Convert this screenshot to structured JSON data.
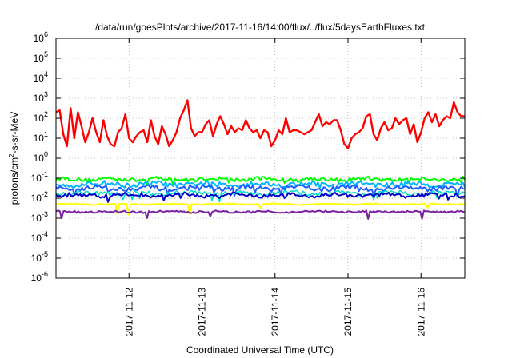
{
  "chart_data": {
    "type": "line",
    "title": "/data/run/goesPlots/archive/2017-11-16/14:00/flux/../flux/5daysEarthFluxes.txt",
    "xlabel": "Coordinated Universal Time (UTC)",
    "ylabel": "protons/cm2-s-sr-MeV",
    "ylabel_parts": {
      "pre": "protons/cm",
      "sup": "2",
      "post": "-s-sr-MeV"
    },
    "yscale": "log",
    "ylim_exp": [
      -6,
      6
    ],
    "y_ticks": [
      {
        "base": "10",
        "exp": "-6"
      },
      {
        "base": "10",
        "exp": "-5"
      },
      {
        "base": "10",
        "exp": "-4"
      },
      {
        "base": "10",
        "exp": "-3"
      },
      {
        "base": "10",
        "exp": "-2"
      },
      {
        "base": "10",
        "exp": "-1"
      },
      {
        "base": "10",
        "exp": "0"
      },
      {
        "base": "10",
        "exp": "1"
      },
      {
        "base": "10",
        "exp": "2"
      },
      {
        "base": "10",
        "exp": "3"
      },
      {
        "base": "10",
        "exp": "4"
      },
      {
        "base": "10",
        "exp": "5"
      },
      {
        "base": "10",
        "exp": "6"
      }
    ],
    "xlim_days": [
      0,
      5.6
    ],
    "x_ticks": [
      {
        "label": "2017-11-12",
        "day": 1
      },
      {
        "label": "2017-11-13",
        "day": 2
      },
      {
        "label": "2017-11-14",
        "day": 3
      },
      {
        "label": "2017-11-15",
        "day": 4
      },
      {
        "label": "2017-11-16",
        "day": 5
      }
    ],
    "grid": true,
    "series": [
      {
        "color": "#ff0000",
        "width": 2.4,
        "base": 1.4,
        "amp": 0.9,
        "spike": 0.6,
        "points": [
          [
            0.0,
            2.3
          ],
          [
            0.05,
            2.4
          ],
          [
            0.1,
            1.2
          ],
          [
            0.15,
            0.6
          ],
          [
            0.2,
            2.5
          ],
          [
            0.25,
            1.0
          ],
          [
            0.3,
            2.3
          ],
          [
            0.35,
            1.6
          ],
          [
            0.4,
            0.8
          ],
          [
            0.45,
            1.3
          ],
          [
            0.5,
            2.0
          ],
          [
            0.55,
            1.3
          ],
          [
            0.6,
            0.8
          ],
          [
            0.65,
            1.9
          ],
          [
            0.7,
            1.1
          ],
          [
            0.75,
            0.7
          ],
          [
            0.8,
            0.6
          ],
          [
            0.85,
            1.3
          ],
          [
            0.9,
            1.5
          ],
          [
            0.95,
            2.2
          ],
          [
            1.0,
            1.0
          ],
          [
            1.05,
            0.8
          ],
          [
            1.1,
            1.1
          ],
          [
            1.15,
            1.3
          ],
          [
            1.2,
            1.4
          ],
          [
            1.25,
            0.8
          ],
          [
            1.3,
            1.9
          ],
          [
            1.35,
            1.1
          ],
          [
            1.4,
            0.7
          ],
          [
            1.45,
            1.6
          ],
          [
            1.5,
            1.2
          ],
          [
            1.55,
            0.6
          ],
          [
            1.6,
            0.9
          ],
          [
            1.65,
            1.3
          ],
          [
            1.7,
            2.0
          ],
          [
            1.75,
            2.4
          ],
          [
            1.8,
            2.9
          ],
          [
            1.85,
            1.5
          ],
          [
            1.9,
            1.1
          ],
          [
            1.95,
            1.3
          ],
          [
            2.0,
            1.3
          ],
          [
            2.05,
            1.7
          ],
          [
            2.1,
            1.9
          ],
          [
            2.15,
            1.1
          ],
          [
            2.2,
            1.7
          ],
          [
            2.25,
            2.1
          ],
          [
            2.3,
            1.7
          ],
          [
            2.35,
            1.2
          ],
          [
            2.4,
            1.6
          ],
          [
            2.45,
            1.3
          ],
          [
            2.5,
            1.5
          ],
          [
            2.55,
            1.4
          ],
          [
            2.6,
            1.9
          ],
          [
            2.65,
            1.5
          ],
          [
            2.7,
            1.3
          ],
          [
            2.75,
            1.4
          ],
          [
            2.8,
            1.0
          ],
          [
            2.85,
            1.4
          ],
          [
            2.9,
            1.3
          ],
          [
            2.95,
            0.6
          ],
          [
            3.0,
            0.9
          ],
          [
            3.05,
            1.4
          ],
          [
            3.1,
            1.2
          ],
          [
            3.15,
            2.0
          ],
          [
            3.2,
            1.3
          ],
          [
            3.25,
            1.4
          ],
          [
            3.3,
            1.4
          ],
          [
            3.35,
            1.3
          ],
          [
            3.4,
            1.2
          ],
          [
            3.45,
            1.3
          ],
          [
            3.5,
            1.4
          ],
          [
            3.55,
            1.8
          ],
          [
            3.6,
            2.2
          ],
          [
            3.65,
            1.6
          ],
          [
            3.7,
            1.8
          ],
          [
            3.75,
            1.7
          ],
          [
            3.8,
            1.9
          ],
          [
            3.85,
            1.9
          ],
          [
            3.9,
            1.4
          ],
          [
            3.95,
            0.7
          ],
          [
            4.0,
            0.5
          ],
          [
            4.05,
            1.0
          ],
          [
            4.1,
            1.2
          ],
          [
            4.15,
            1.3
          ],
          [
            4.2,
            1.5
          ],
          [
            4.25,
            2.1
          ],
          [
            4.3,
            2.2
          ],
          [
            4.35,
            1.2
          ],
          [
            4.4,
            0.9
          ],
          [
            4.45,
            1.5
          ],
          [
            4.5,
            1.8
          ],
          [
            4.55,
            1.4
          ],
          [
            4.6,
            1.5
          ],
          [
            4.65,
            2.0
          ],
          [
            4.7,
            1.7
          ],
          [
            4.75,
            1.9
          ],
          [
            4.8,
            2.0
          ],
          [
            4.85,
            1.2
          ],
          [
            4.9,
            1.7
          ],
          [
            4.95,
            0.8
          ],
          [
            5.0,
            1.3
          ],
          [
            5.05,
            2.0
          ],
          [
            5.1,
            2.3
          ],
          [
            5.15,
            1.8
          ],
          [
            5.2,
            2.2
          ],
          [
            5.25,
            1.6
          ],
          [
            5.3,
            1.9
          ],
          [
            5.35,
            2.1
          ],
          [
            5.4,
            2.0
          ],
          [
            5.45,
            2.8
          ],
          [
            5.5,
            2.3
          ],
          [
            5.55,
            2.1
          ],
          [
            5.6,
            2.1
          ]
        ]
      },
      {
        "color": "#00ff00",
        "width": 2.0,
        "base": -1.05,
        "amp": 0.1,
        "spike": 0.15
      },
      {
        "color": "#00b4ff",
        "width": 2.0,
        "base": -1.3,
        "amp": 0.12,
        "spike": 0.2
      },
      {
        "color": "#1a5cff",
        "width": 2.0,
        "base": -1.5,
        "amp": 0.12,
        "spike": 0.25
      },
      {
        "color": "#00e0c8",
        "width": 1.6,
        "base": -1.75,
        "amp": 0.1,
        "spike": 0.3
      },
      {
        "color": "#0000c8",
        "width": 2.0,
        "base": -1.85,
        "amp": 0.1,
        "spike": 0.2
      },
      {
        "color": "#ffff00",
        "width": 2.0,
        "base": -2.3,
        "amp": 0.03,
        "spike": 0.35
      },
      {
        "color": "#7a1fa0",
        "width": 2.0,
        "base": -2.68,
        "amp": 0.05,
        "spike": 0.25
      }
    ]
  }
}
